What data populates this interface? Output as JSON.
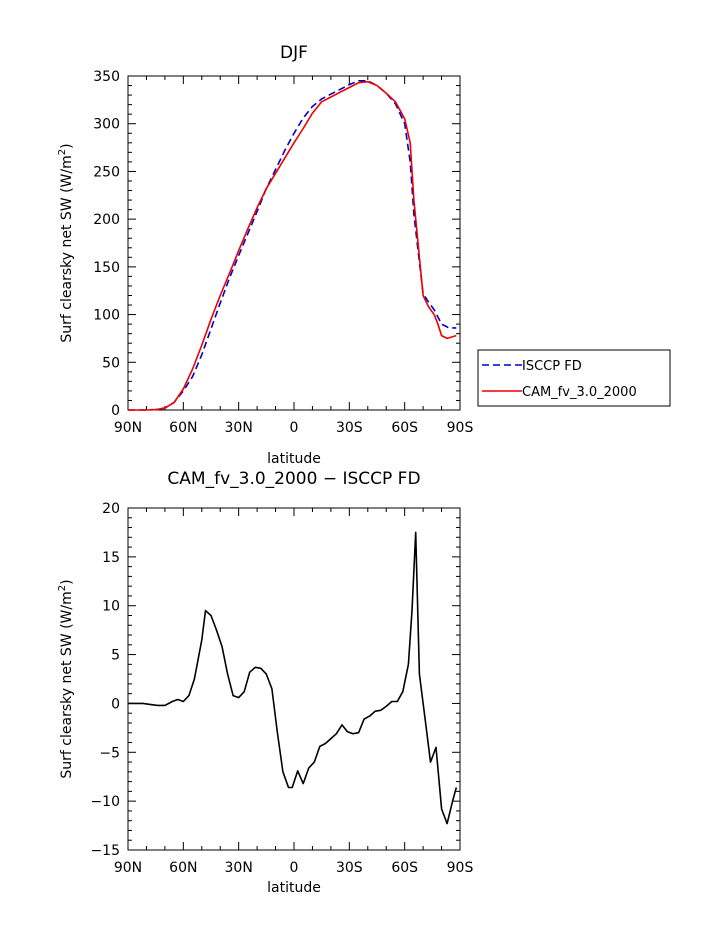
{
  "chart_data": [
    {
      "type": "line",
      "title": "DJF",
      "xlabel": "latitude",
      "ylabel": "Surf clearsky net SW (W/m",
      "ylabel_sup": "2",
      "ylabel_tail": ")",
      "xlim": [
        90,
        -90
      ],
      "ylim": [
        0,
        350
      ],
      "xticks": [
        90,
        60,
        30,
        0,
        -30,
        -60,
        -90
      ],
      "xtick_labels": [
        "90N",
        "60N",
        "30N",
        "0",
        "30S",
        "60S",
        "90S"
      ],
      "yticks": [
        0,
        50,
        100,
        150,
        200,
        250,
        300,
        350
      ],
      "ytick_labels": [
        "0",
        "50",
        "100",
        "150",
        "200",
        "250",
        "300",
        "350"
      ],
      "legend": "right",
      "series": [
        {
          "name": "ISCCP FD",
          "color": "#0000cc",
          "style": "dashed",
          "x": [
            90,
            85,
            80,
            75,
            70,
            65,
            60,
            55,
            50,
            45,
            40,
            35,
            30,
            25,
            20,
            15,
            10,
            5,
            0,
            -5,
            -10,
            -15,
            -20,
            -25,
            -30,
            -35,
            -40,
            -45,
            -50,
            -55,
            -60,
            -63,
            -65,
            -68,
            -70,
            -73,
            -76,
            -80,
            -84,
            -88
          ],
          "y": [
            0,
            0,
            0,
            0.5,
            2,
            8,
            20,
            35,
            58,
            85,
            112,
            138,
            162,
            185,
            208,
            232,
            252,
            272,
            290,
            306,
            318,
            326,
            331,
            336,
            341,
            345,
            345,
            340,
            332,
            321,
            300,
            260,
            205,
            155,
            122,
            113,
            105,
            90,
            86,
            86
          ]
        },
        {
          "name": "CAM_fv_3.0_2000",
          "color": "#ee0000",
          "style": "solid",
          "x": [
            90,
            85,
            80,
            75,
            70,
            65,
            60,
            55,
            50,
            45,
            40,
            35,
            30,
            25,
            20,
            15,
            10,
            5,
            0,
            -5,
            -10,
            -15,
            -20,
            -25,
            -30,
            -35,
            -40,
            -45,
            -50,
            -55,
            -60,
            -63,
            -65,
            -68,
            -70,
            -73,
            -76,
            -78,
            -80,
            -83,
            -88
          ],
          "y": [
            0,
            0,
            0,
            0.3,
            2,
            8,
            22,
            43,
            68,
            95,
            120,
            143,
            167,
            190,
            212,
            232,
            248,
            264,
            280,
            295,
            311,
            323,
            328,
            333,
            338,
            343,
            344,
            340,
            332,
            323,
            305,
            280,
            220,
            160,
            120,
            108,
            100,
            90,
            78,
            75,
            78
          ]
        }
      ]
    },
    {
      "type": "line",
      "title": "CAM_fv_3.0_2000 − ISCCP FD",
      "xlabel": "latitude",
      "ylabel": "Surf clearsky net SW (W/m",
      "ylabel_sup": "2",
      "ylabel_tail": ")",
      "xlim": [
        90,
        -90
      ],
      "ylim": [
        -15,
        20
      ],
      "xticks": [
        90,
        60,
        30,
        0,
        -30,
        -60,
        -90
      ],
      "xtick_labels": [
        "90N",
        "60N",
        "30N",
        "0",
        "30S",
        "60S",
        "90S"
      ],
      "yticks": [
        -15,
        -10,
        -5,
        0,
        5,
        10,
        15,
        20
      ],
      "ytick_labels": [
        "−15",
        "−10",
        "−5",
        "0",
        "5",
        "10",
        "15",
        "20"
      ],
      "series": [
        {
          "color": "#000000",
          "style": "solid",
          "x": [
            90,
            82,
            78,
            74,
            70,
            66,
            63,
            60,
            57,
            54,
            50,
            48,
            45,
            42,
            39,
            36,
            33,
            30,
            27,
            24,
            21,
            18,
            15,
            12,
            9,
            6,
            3,
            1,
            -2,
            -5,
            -8,
            -11,
            -14,
            -17,
            -20,
            -23,
            -26,
            -29,
            -32,
            -35,
            -38,
            -41,
            -44,
            -47,
            -50,
            -53,
            -56,
            -59,
            -62,
            -64,
            -66,
            -68,
            -71,
            -74,
            -77,
            -80,
            -83,
            -86,
            -88
          ],
          "y": [
            0,
            0,
            -0.1,
            -0.2,
            -0.2,
            0.2,
            0.4,
            0.2,
            0.8,
            2.5,
            6.5,
            9.5,
            9.0,
            7.5,
            5.8,
            3.0,
            0.8,
            0.6,
            1.2,
            3.2,
            3.7,
            3.6,
            3.0,
            1.5,
            -3.0,
            -7.0,
            -8.6,
            -8.6,
            -6.9,
            -8.2,
            -6.6,
            -6.0,
            -4.4,
            -4.1,
            -3.6,
            -3.1,
            -2.2,
            -2.9,
            -3.1,
            -3.0,
            -1.6,
            -1.3,
            -0.8,
            -0.7,
            -0.3,
            0.2,
            0.2,
            1.2,
            4.0,
            9.5,
            17.5,
            3.0,
            -1.5,
            -6.0,
            -4.5,
            -10.8,
            -12.3,
            -10.0,
            -8.6
          ]
        }
      ]
    }
  ]
}
